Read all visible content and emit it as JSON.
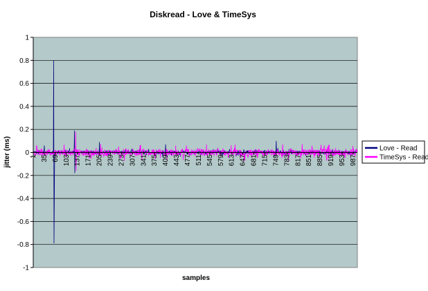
{
  "chart_data": {
    "type": "line",
    "title": "Diskread - Love & TimeSys",
    "xlabel": "samples",
    "ylabel": "jitter (ms)",
    "ylim": [
      -1,
      1
    ],
    "yticks": [
      "1",
      "0.8",
      "0.6",
      "0.4",
      "0.2",
      "0",
      "-0.2",
      "-0.4",
      "-0.6",
      "-0.8",
      "-1"
    ],
    "xlim": [
      1,
      1000
    ],
    "xticks": [
      "1",
      "35",
      "69",
      "103",
      "137",
      "171",
      "205",
      "239",
      "273",
      "307",
      "341",
      "375",
      "409",
      "443",
      "477",
      "511",
      "545",
      "579",
      "613",
      "647",
      "681",
      "715",
      "749",
      "783",
      "817",
      "851",
      "885",
      "919",
      "953",
      "987"
    ],
    "grid": true,
    "legend_position": "right",
    "background": "#b4c9c9",
    "series": [
      {
        "name": "Love - Read",
        "color": "#000080",
        "noise_amplitude": 0.015,
        "spikes": [
          {
            "x": 35,
            "y": 0.06
          },
          {
            "x": 64,
            "y": 0.8
          },
          {
            "x": 65,
            "y": -0.79
          },
          {
            "x": 66,
            "y": -0.4
          },
          {
            "x": 128,
            "y": 0.19
          },
          {
            "x": 129,
            "y": -0.18
          },
          {
            "x": 205,
            "y": 0.09
          },
          {
            "x": 409,
            "y": 0.07
          },
          {
            "x": 750,
            "y": 0.1
          }
        ]
      },
      {
        "name": "TimeSys - Read",
        "color": "#ff00ff",
        "noise_amplitude": 0.03,
        "spikes": [
          {
            "x": 132,
            "y": 0.18
          },
          {
            "x": 133,
            "y": -0.16
          },
          {
            "x": 440,
            "y": 0.06
          },
          {
            "x": 770,
            "y": 0.07
          },
          {
            "x": 860,
            "y": 0.06
          }
        ]
      }
    ]
  }
}
